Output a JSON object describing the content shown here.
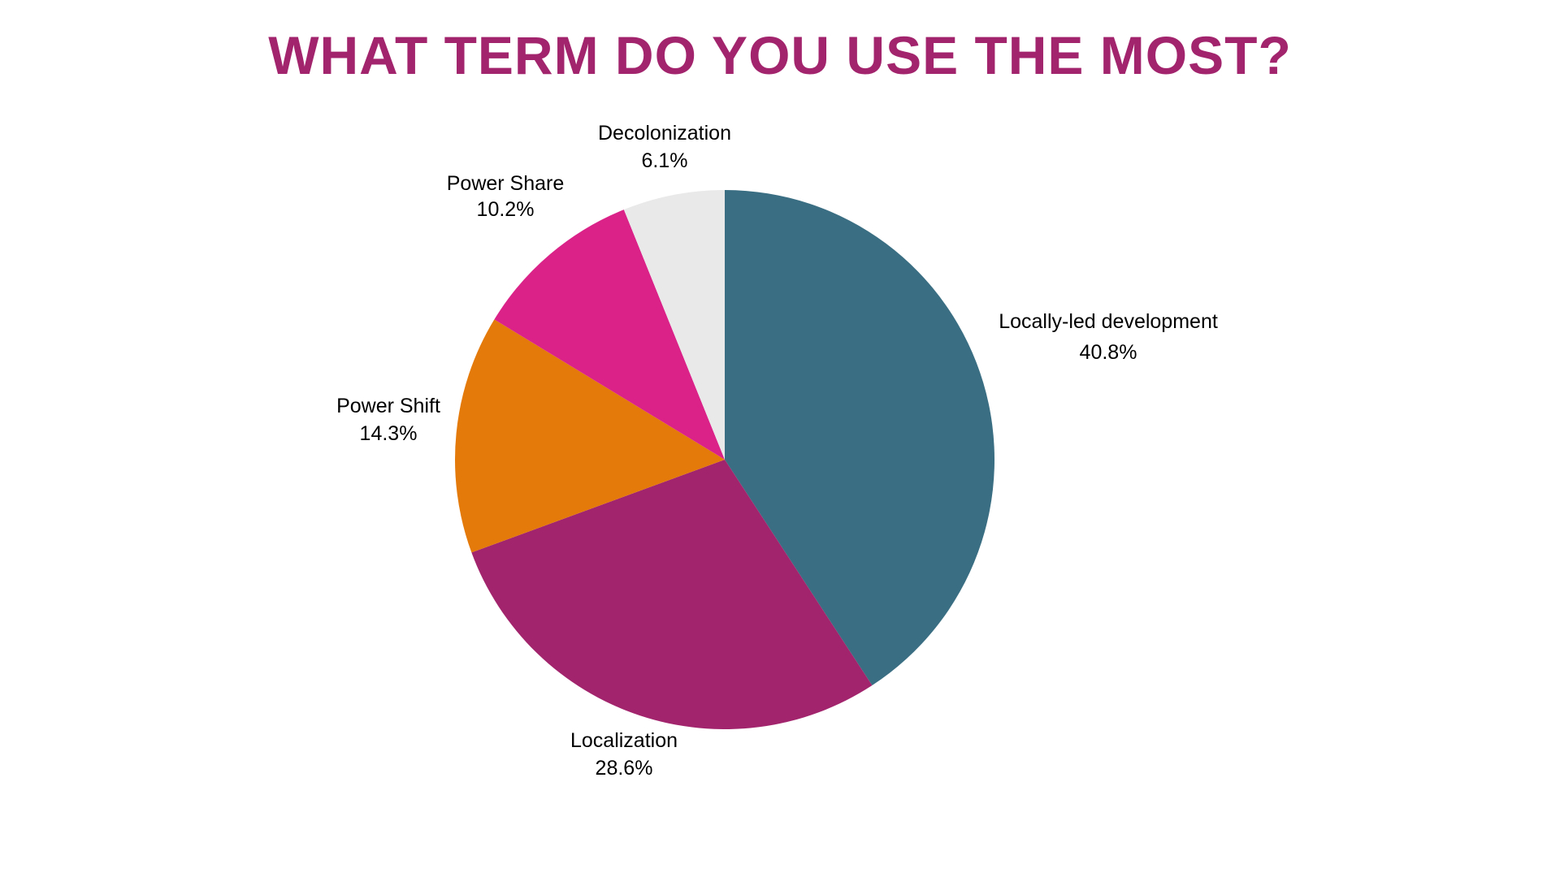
{
  "chart_data": {
    "type": "pie",
    "title": "WHAT TERM DO YOU USE THE MOST?",
    "start_angle_deg": 0,
    "direction": "clockwise",
    "legend": "none",
    "slices": [
      {
        "label": "Locally-led development",
        "value": 40.8,
        "value_label": "40.8%",
        "color": "#3a6e82"
      },
      {
        "label": "Localization",
        "value": 28.6,
        "value_label": "28.6%",
        "color": "#a2246c"
      },
      {
        "label": "Power Shift",
        "value": 14.3,
        "value_label": "14.3%",
        "color": "#e47a0a"
      },
      {
        "label": "Power Share",
        "value": 10.2,
        "value_label": "10.2%",
        "color": "#da2289"
      },
      {
        "label": "Decolonization",
        "value": 6.1,
        "value_label": "6.1%",
        "color": "#e9e9ea"
      }
    ]
  },
  "colors": {
    "title": "#a2246c",
    "background": "#ffffff",
    "label_text": "#000000"
  }
}
